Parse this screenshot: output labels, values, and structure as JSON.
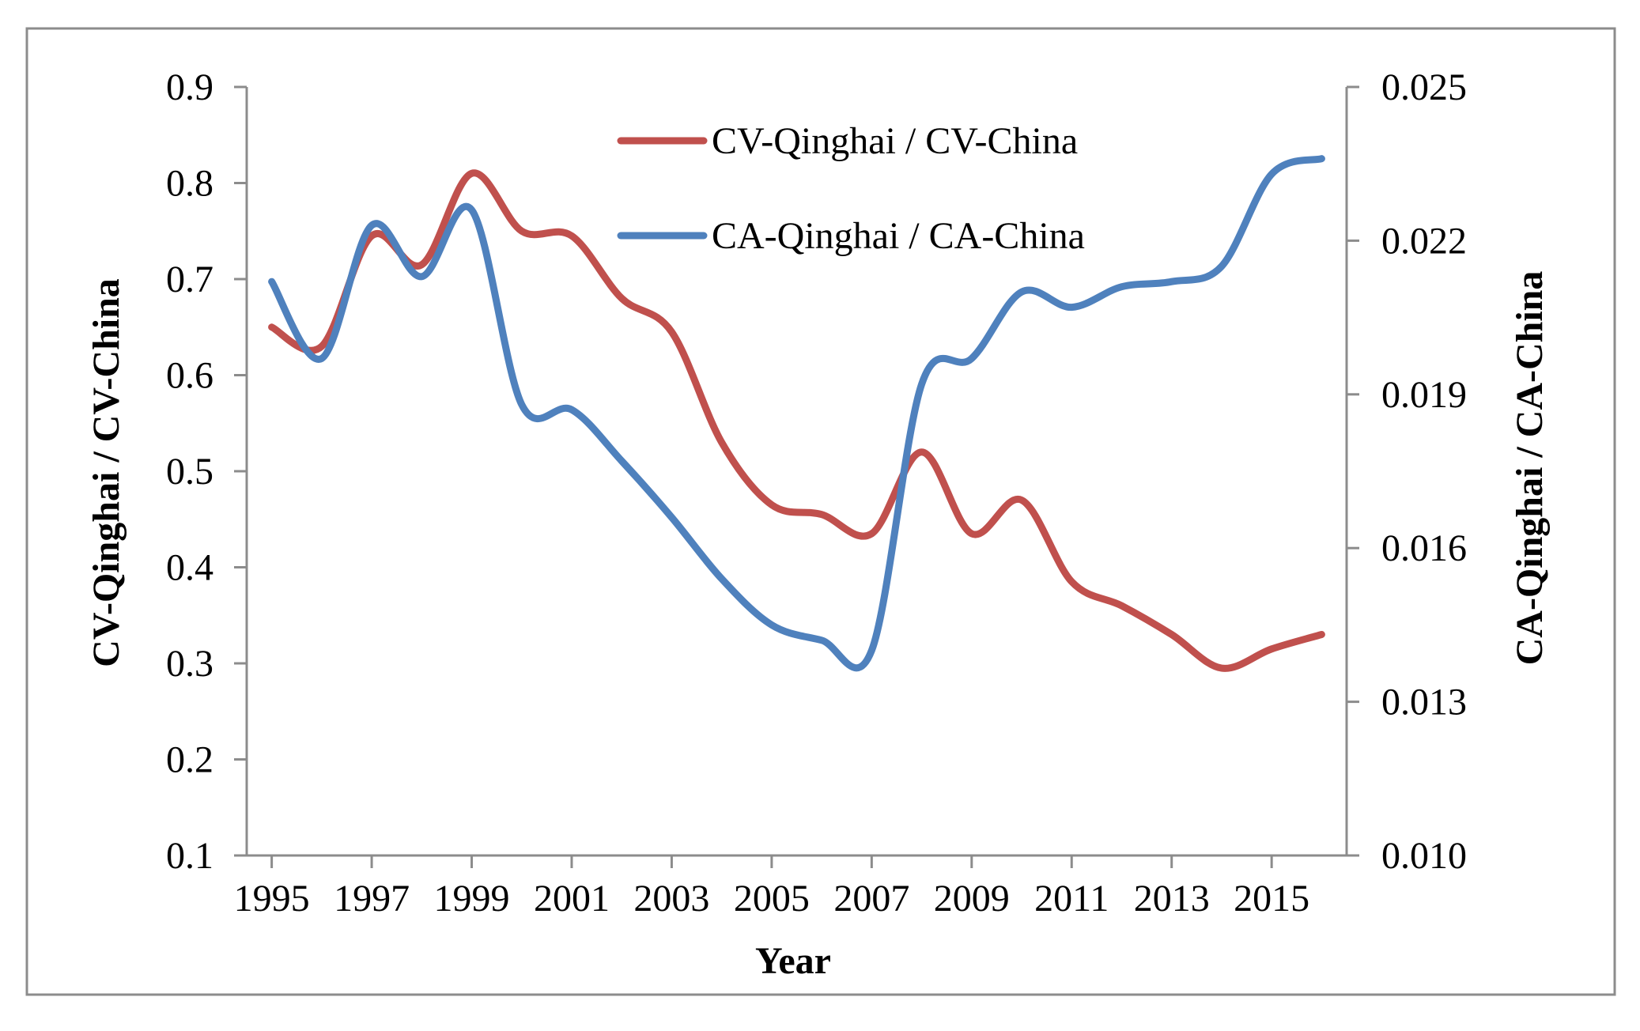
{
  "chart_data": {
    "type": "line",
    "title": "",
    "xlabel": "Year",
    "ylabel_left": "CV-Qinghai / CV-China",
    "ylabel_right": "CA-Qinghai / CA-China",
    "x_tick_labels": [
      "1995",
      "1997",
      "1999",
      "2001",
      "2003",
      "2005",
      "2007",
      "2009",
      "2011",
      "2013",
      "2015"
    ],
    "x_ticks": [
      1995,
      1997,
      1999,
      2001,
      2003,
      2005,
      2007,
      2009,
      2011,
      2013,
      2015
    ],
    "xlim": [
      1994.5,
      2016.5
    ],
    "y_left": {
      "ylim": [
        0.1,
        0.9
      ],
      "ticks": [
        0.1,
        0.2,
        0.3,
        0.4,
        0.5,
        0.6,
        0.7,
        0.8,
        0.9
      ],
      "tick_labels": [
        "0.1",
        "0.2",
        "0.3",
        "0.4",
        "0.5",
        "0.6",
        "0.7",
        "0.8",
        "0.9"
      ]
    },
    "y_right": {
      "ylim": [
        0.01,
        0.025
      ],
      "ticks": [
        0.01,
        0.013,
        0.016,
        0.019,
        0.022,
        0.025
      ],
      "tick_labels": [
        "0.010",
        "0.013",
        "0.016",
        "0.019",
        "0.022",
        "0.025"
      ]
    },
    "legend_position": "top-center",
    "grid": false,
    "series": [
      {
        "name": "CV-Qinghai / CV-China",
        "axis": "left",
        "color": "#c0504d",
        "x": [
          1995,
          1996,
          1997,
          1998,
          1999,
          2000,
          2001,
          2002,
          2003,
          2004,
          2005,
          2006,
          2007,
          2008,
          2009,
          2010,
          2011,
          2012,
          2013,
          2014,
          2015,
          2016
        ],
        "values": [
          0.65,
          0.63,
          0.745,
          0.715,
          0.81,
          0.75,
          0.745,
          0.68,
          0.645,
          0.53,
          0.465,
          0.455,
          0.435,
          0.52,
          0.435,
          0.47,
          0.385,
          0.36,
          0.33,
          0.295,
          0.315,
          0.33
        ]
      },
      {
        "name": "CA-Qinghai / CA-China",
        "axis": "right",
        "color": "#4f81bd",
        "x": [
          1995,
          1996,
          1997,
          1998,
          1999,
          2000,
          2001,
          2002,
          2003,
          2004,
          2005,
          2006,
          2007,
          2008,
          2009,
          2010,
          2011,
          2012,
          2013,
          2014,
          2015,
          2016
        ],
        "values": [
          0.0212,
          0.0197,
          0.0223,
          0.0213,
          0.0226,
          0.0188,
          0.0187,
          0.0177,
          0.0166,
          0.0154,
          0.0145,
          0.0142,
          0.014,
          0.0192,
          0.0197,
          0.021,
          0.0207,
          0.0211,
          0.0212,
          0.0215,
          0.0233,
          0.0236
        ]
      }
    ]
  }
}
